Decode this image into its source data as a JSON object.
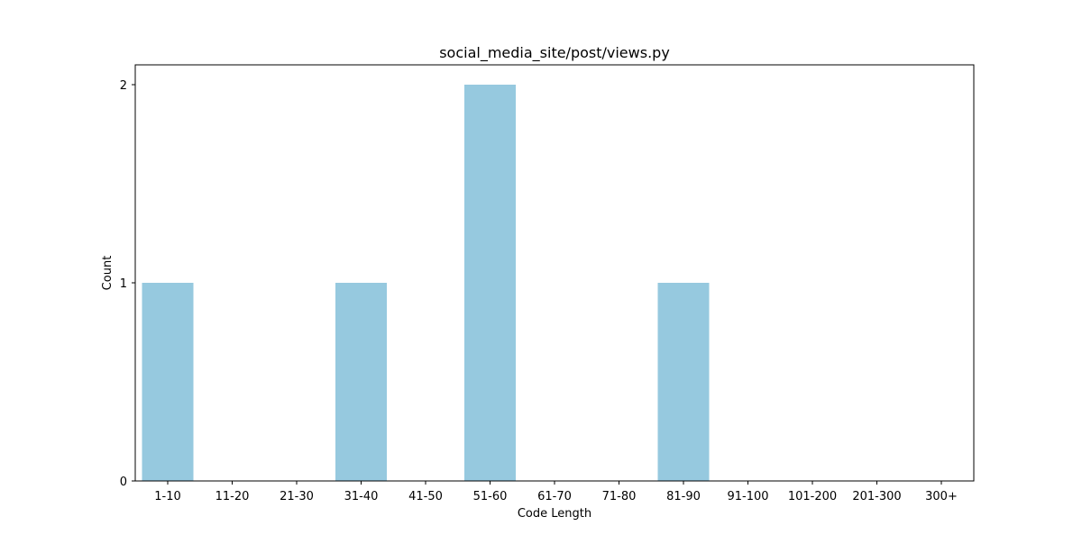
{
  "chart_data": {
    "type": "bar",
    "title": "social_media_site/post/views.py",
    "xlabel": "Code Length",
    "ylabel": "Count",
    "categories": [
      "1-10",
      "11-20",
      "21-30",
      "31-40",
      "41-50",
      "51-60",
      "61-70",
      "71-80",
      "81-90",
      "91-100",
      "101-200",
      "201-300",
      "300+"
    ],
    "values": [
      1,
      0,
      0,
      1,
      0,
      2,
      0,
      0,
      1,
      0,
      0,
      0,
      0
    ],
    "yticks": [
      0,
      1,
      2
    ],
    "ylim": [
      0,
      2.1
    ],
    "grid": false,
    "colors": {
      "bar": "#96c9df",
      "axis": "#000000"
    }
  }
}
